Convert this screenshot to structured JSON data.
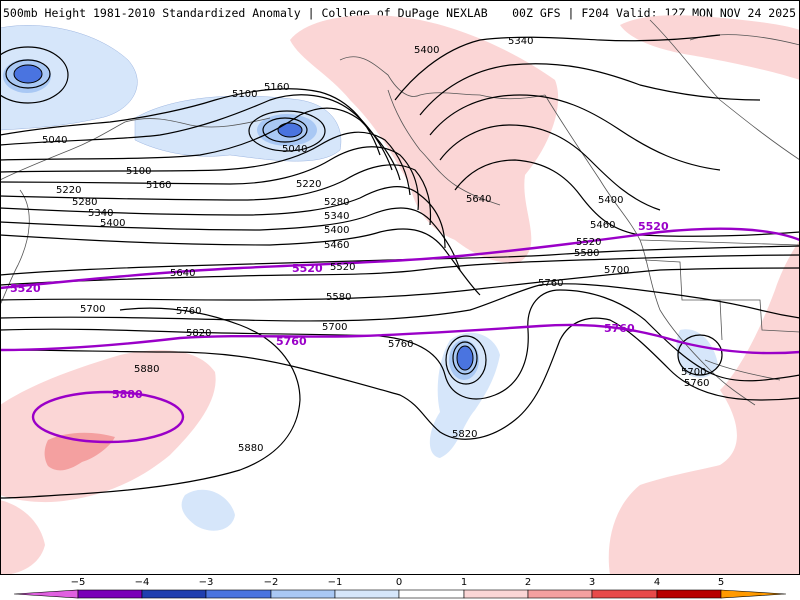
{
  "header": {
    "left": "500mb Height 1981-2010 Standardized Anomaly | College of DuPage NEXLAB",
    "right": "00Z GFS | F204 Valid: 12Z MON NOV 24 2025"
  },
  "colors": {
    "neg5": "#e060e0",
    "neg4": "#7a00b8",
    "neg3": "#1f3fb0",
    "neg2": "#4a74e0",
    "neg1": "#a9c8f4",
    "neg0": "#d6e6fa",
    "zero": "#ffffff",
    "pos1": "#fbd6d6",
    "pos2": "#f4a0a0",
    "pos3": "#e84a4a",
    "pos4": "#b80000",
    "pos5": "#ff9a00",
    "pos6": "#ffd000",
    "contour": "#000000",
    "highlight": "#9a00c8",
    "coast": "#555555"
  },
  "contour_labels": {
    "c5040": "5040",
    "c5100": "5100",
    "c5160": "5160",
    "c5220": "5220",
    "c5280": "5280",
    "c5340": "5340",
    "c5400": "5400",
    "c5460": "5460",
    "c5520": "5520",
    "c5580": "5580",
    "c5640": "5640",
    "c5700": "5700",
    "c5760": "5760",
    "c5820": "5820",
    "c5880": "5880"
  },
  "highlight_labels": {
    "h5520": "5520",
    "h5760": "5760",
    "h5880": "5880"
  },
  "colorbar": {
    "ticks": [
      "−5",
      "−4",
      "−3",
      "−2",
      "−1",
      "0",
      "1",
      "2",
      "3",
      "4",
      "5"
    ]
  }
}
